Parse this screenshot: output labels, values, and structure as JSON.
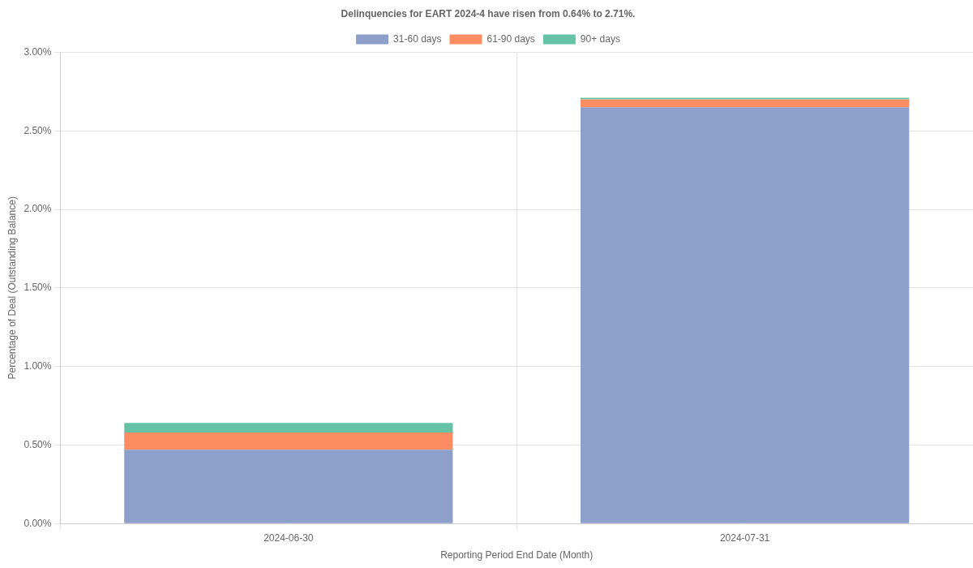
{
  "chart_data": {
    "type": "bar",
    "title": "Delinquencies for EART 2024-4 have risen from 0.64% to 2.71%.",
    "xlabel": "Reporting Period End Date (Month)",
    "ylabel": "Percentage of Deal (Outstanding Balance)",
    "categories": [
      "2024-06-30",
      "2024-07-31"
    ],
    "series": [
      {
        "name": "31-60 days",
        "color": "#8da0cb",
        "values": [
          0.47,
          2.65
        ]
      },
      {
        "name": "61-90 days",
        "color": "#fc8d62",
        "values": [
          0.11,
          0.05
        ]
      },
      {
        "name": "90+ days",
        "color": "#66c2a5",
        "values": [
          0.06,
          0.01
        ]
      }
    ],
    "stacked": true,
    "legend": "top",
    "grid": true,
    "ylim": [
      0,
      3
    ],
    "yticks": [
      {
        "value": 0,
        "label": "0.00%"
      },
      {
        "value": 0.5,
        "label": "0.50%"
      },
      {
        "value": 1,
        "label": "1.00%"
      },
      {
        "value": 1.5,
        "label": "1.50%"
      },
      {
        "value": 2,
        "label": "2.00%"
      },
      {
        "value": 2.5,
        "label": "2.50%"
      },
      {
        "value": 3,
        "label": "3.00%"
      }
    ]
  }
}
